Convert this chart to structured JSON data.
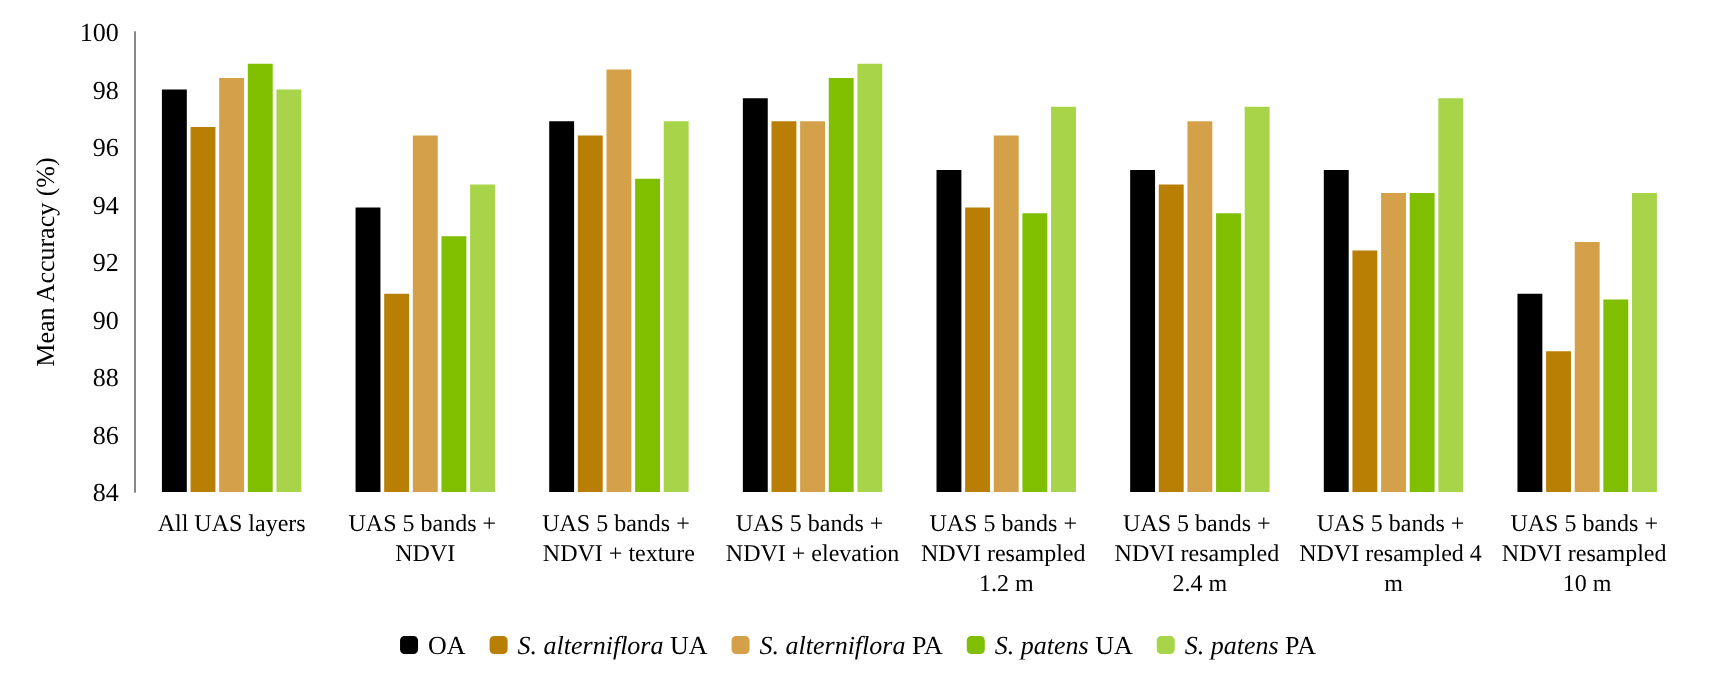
{
  "chart_data": {
    "type": "bar",
    "ylabel": "Mean Accuracy (%)",
    "categories": [
      "All UAS layers",
      "UAS 5 bands + NDVI",
      "UAS 5 bands + NDVI + texture",
      "UAS 5 bands + NDVI + elevation",
      "UAS 5 bands + NDVI resampled 1.2 m",
      "UAS 5 bands + NDVI resampled 2.4 m",
      "UAS 5 bands + NDVI resampled 4 m",
      "UAS 5 bands + NDVI resampled 10 m"
    ],
    "series": [
      {
        "name": "OA",
        "color": "#000000",
        "values": [
          98,
          93.9,
          96.9,
          97.7,
          95.2,
          95.2,
          95.2,
          90.9
        ]
      },
      {
        "name": "S. alterniflora UA",
        "color": "#b97f05",
        "values": [
          96.7,
          90.9,
          96.4,
          96.9,
          93.9,
          94.7,
          92.4,
          88.9
        ]
      },
      {
        "name": "S. alterniflora PA",
        "color": "#d4a04a",
        "values": [
          98.4,
          96.4,
          98.7,
          96.9,
          96.4,
          96.9,
          94.4,
          92.7
        ]
      },
      {
        "name": "S. patens UA",
        "color": "#7fbf00",
        "values": [
          98.9,
          92.9,
          94.9,
          98.4,
          93.7,
          93.7,
          94.4,
          90.7
        ]
      },
      {
        "name": "S. patens PA",
        "color": "#a8d44a",
        "values": [
          98,
          94.7,
          96.9,
          98.9,
          97.4,
          97.4,
          97.7,
          94.4
        ]
      }
    ],
    "ylim": [
      84,
      100
    ],
    "yticks": [
      84,
      86,
      88,
      90,
      92,
      94,
      96,
      98,
      100
    ],
    "grid": false,
    "legend": "bottom"
  }
}
